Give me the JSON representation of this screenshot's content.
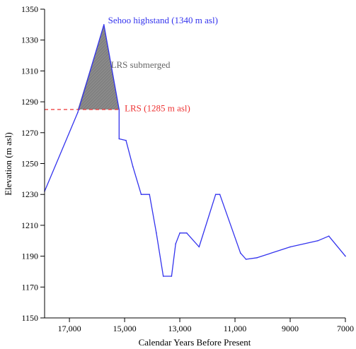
{
  "chart_data": {
    "type": "line",
    "xlabel": "Calendar Years Before Present",
    "ylabel": "Elevation (m asl)",
    "xlim": [
      17900,
      7000
    ],
    "ylim": [
      1150,
      1350
    ],
    "x_reversed": true,
    "x_ticks": [
      17000,
      15000,
      13000,
      11000,
      9000,
      7000
    ],
    "x_tick_labels": [
      "17,000",
      "15,000",
      "13,000",
      "11,000",
      "9000",
      "7000"
    ],
    "y_ticks": [
      1150,
      1170,
      1190,
      1210,
      1230,
      1250,
      1270,
      1290,
      1310,
      1330,
      1350
    ],
    "y_tick_labels": [
      "1150",
      "1170",
      "1190",
      "1210",
      "1230",
      "1250",
      "1270",
      "1290",
      "1310",
      "1330",
      "1350"
    ],
    "grid": false,
    "colors": {
      "series": "#3333ee",
      "threshold": "#ee3333",
      "fill": "#808080",
      "fill_label": "#666666"
    },
    "series": [
      {
        "x": [
          17900,
          16700,
          15750,
          15200,
          15200,
          14950,
          14700,
          14400,
          14100,
          13850,
          13600,
          13300,
          13150,
          13000,
          12750,
          12300,
          11700,
          11550,
          10800,
          10600,
          10200,
          9000,
          8000,
          7600,
          7000
        ],
        "y": [
          1232,
          1283,
          1340,
          1285,
          1266,
          1265,
          1248,
          1230,
          1230,
          1205,
          1177,
          1177,
          1198,
          1205,
          1205,
          1196,
          1230,
          1230,
          1192,
          1188,
          1189,
          1196,
          1200,
          1203,
          1190
        ]
      }
    ],
    "threshold": {
      "y": 1285,
      "x_from": 17900,
      "x_to": 15200
    },
    "shaded_region": {
      "label": "LRS submerged",
      "above": 1285,
      "x": [
        16700,
        15750,
        15200
      ],
      "y": [
        1285,
        1340,
        1285
      ]
    },
    "annotations": [
      {
        "text": "Sehoo highstand (1340 m asl)",
        "x": 15600,
        "y": 1340,
        "color": "#3333ee"
      },
      {
        "text": "LRS submerged",
        "x": 15500,
        "y": 1311,
        "color": "#666666"
      },
      {
        "text": "LRS (1285 m asl)",
        "x": 15000,
        "y": 1283,
        "color": "#ee3333"
      }
    ]
  }
}
